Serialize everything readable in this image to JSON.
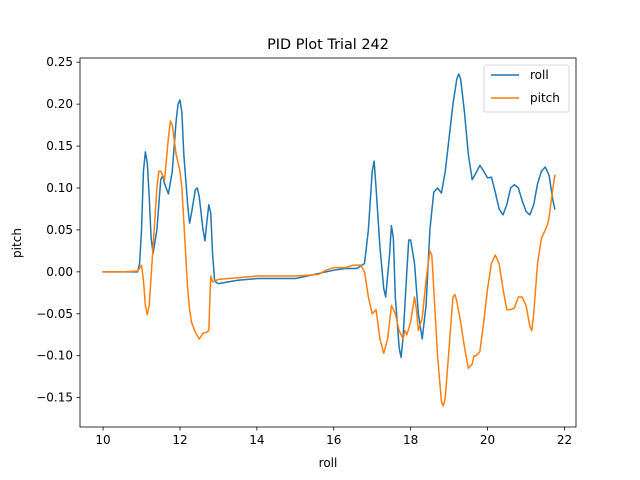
{
  "chart_data": {
    "type": "line",
    "title": "PID Plot Trial 242",
    "xlabel": "roll",
    "ylabel": "pitch",
    "xlim": [
      9.4,
      22.3
    ],
    "ylim": [
      -0.185,
      0.255
    ],
    "xticks": [
      10,
      12,
      14,
      16,
      18,
      20,
      22
    ],
    "xtick_labels": [
      "10",
      "12",
      "14",
      "16",
      "18",
      "20",
      "22"
    ],
    "yticks": [
      -0.15,
      -0.1,
      -0.05,
      0.0,
      0.05,
      0.1,
      0.15,
      0.2,
      0.25
    ],
    "ytick_labels": [
      "−0.15",
      "−0.10",
      "−0.05",
      "0.00",
      "0.05",
      "0.10",
      "0.15",
      "0.20",
      "0.25"
    ],
    "grid": false,
    "legend_position": "top-right",
    "series": [
      {
        "name": "roll",
        "color": "#1f77b4",
        "points": [
          [
            10.0,
            0.0
          ],
          [
            10.5,
            0.0
          ],
          [
            10.9,
            0.0
          ],
          [
            10.95,
            0.01
          ],
          [
            11.0,
            0.05
          ],
          [
            11.05,
            0.12
          ],
          [
            11.1,
            0.143
          ],
          [
            11.15,
            0.13
          ],
          [
            11.2,
            0.09
          ],
          [
            11.25,
            0.04
          ],
          [
            11.3,
            0.022
          ],
          [
            11.4,
            0.05
          ],
          [
            11.5,
            0.11
          ],
          [
            11.55,
            0.115
          ],
          [
            11.6,
            0.105
          ],
          [
            11.7,
            0.093
          ],
          [
            11.8,
            0.12
          ],
          [
            11.9,
            0.18
          ],
          [
            11.95,
            0.2
          ],
          [
            12.0,
            0.205
          ],
          [
            12.05,
            0.19
          ],
          [
            12.1,
            0.14
          ],
          [
            12.2,
            0.08
          ],
          [
            12.25,
            0.058
          ],
          [
            12.3,
            0.07
          ],
          [
            12.4,
            0.098
          ],
          [
            12.45,
            0.1
          ],
          [
            12.5,
            0.09
          ],
          [
            12.6,
            0.05
          ],
          [
            12.65,
            0.037
          ],
          [
            12.7,
            0.06
          ],
          [
            12.75,
            0.08
          ],
          [
            12.8,
            0.07
          ],
          [
            12.85,
            0.02
          ],
          [
            12.9,
            -0.01
          ],
          [
            12.95,
            -0.013
          ],
          [
            13.0,
            -0.014
          ],
          [
            13.5,
            -0.01
          ],
          [
            14.0,
            -0.008
          ],
          [
            14.5,
            -0.008
          ],
          [
            15.0,
            -0.008
          ],
          [
            15.2,
            -0.006
          ],
          [
            15.5,
            -0.003
          ],
          [
            16.0,
            0.002
          ],
          [
            16.3,
            0.004
          ],
          [
            16.6,
            0.004
          ],
          [
            16.8,
            0.01
          ],
          [
            16.9,
            0.05
          ],
          [
            17.0,
            0.12
          ],
          [
            17.05,
            0.132
          ],
          [
            17.1,
            0.1
          ],
          [
            17.2,
            0.03
          ],
          [
            17.3,
            -0.02
          ],
          [
            17.35,
            -0.03
          ],
          [
            17.45,
            0.02
          ],
          [
            17.5,
            0.055
          ],
          [
            17.55,
            0.04
          ],
          [
            17.6,
            -0.03
          ],
          [
            17.7,
            -0.09
          ],
          [
            17.75,
            -0.102
          ],
          [
            17.8,
            -0.08
          ],
          [
            17.9,
            0.0
          ],
          [
            17.95,
            0.038
          ],
          [
            18.0,
            0.038
          ],
          [
            18.1,
            0.01
          ],
          [
            18.2,
            -0.05
          ],
          [
            18.3,
            -0.08
          ],
          [
            18.4,
            -0.04
          ],
          [
            18.5,
            0.05
          ],
          [
            18.6,
            0.095
          ],
          [
            18.7,
            0.1
          ],
          [
            18.8,
            0.094
          ],
          [
            18.9,
            0.12
          ],
          [
            19.0,
            0.16
          ],
          [
            19.1,
            0.2
          ],
          [
            19.2,
            0.23
          ],
          [
            19.25,
            0.236
          ],
          [
            19.3,
            0.23
          ],
          [
            19.4,
            0.19
          ],
          [
            19.5,
            0.14
          ],
          [
            19.6,
            0.11
          ],
          [
            19.7,
            0.118
          ],
          [
            19.8,
            0.127
          ],
          [
            19.9,
            0.12
          ],
          [
            20.0,
            0.112
          ],
          [
            20.1,
            0.113
          ],
          [
            20.2,
            0.095
          ],
          [
            20.3,
            0.075
          ],
          [
            20.4,
            0.068
          ],
          [
            20.5,
            0.08
          ],
          [
            20.6,
            0.1
          ],
          [
            20.7,
            0.104
          ],
          [
            20.8,
            0.1
          ],
          [
            20.9,
            0.085
          ],
          [
            21.0,
            0.072
          ],
          [
            21.1,
            0.068
          ],
          [
            21.2,
            0.08
          ],
          [
            21.3,
            0.105
          ],
          [
            21.4,
            0.12
          ],
          [
            21.5,
            0.125
          ],
          [
            21.6,
            0.115
          ],
          [
            21.7,
            0.085
          ],
          [
            21.75,
            0.075
          ]
        ]
      },
      {
        "name": "pitch",
        "color": "#ff7f0e",
        "points": [
          [
            10.0,
            0.0
          ],
          [
            10.5,
            0.0
          ],
          [
            10.9,
            0.001
          ],
          [
            11.0,
            0.008
          ],
          [
            11.05,
            -0.01
          ],
          [
            11.1,
            -0.04
          ],
          [
            11.15,
            -0.051
          ],
          [
            11.2,
            -0.04
          ],
          [
            11.3,
            0.03
          ],
          [
            11.4,
            0.1
          ],
          [
            11.45,
            0.12
          ],
          [
            11.5,
            0.12
          ],
          [
            11.6,
            0.11
          ],
          [
            11.7,
            0.16
          ],
          [
            11.75,
            0.18
          ],
          [
            11.8,
            0.175
          ],
          [
            11.9,
            0.14
          ],
          [
            12.0,
            0.12
          ],
          [
            12.05,
            0.1
          ],
          [
            12.1,
            0.06
          ],
          [
            12.15,
            0.02
          ],
          [
            12.2,
            -0.02
          ],
          [
            12.25,
            -0.045
          ],
          [
            12.3,
            -0.06
          ],
          [
            12.4,
            -0.072
          ],
          [
            12.5,
            -0.08
          ],
          [
            12.55,
            -0.077
          ],
          [
            12.6,
            -0.073
          ],
          [
            12.7,
            -0.072
          ],
          [
            12.75,
            -0.07
          ],
          [
            12.8,
            -0.005
          ],
          [
            12.85,
            -0.012
          ],
          [
            13.0,
            -0.009
          ],
          [
            13.5,
            -0.007
          ],
          [
            14.0,
            -0.005
          ],
          [
            14.5,
            -0.005
          ],
          [
            15.0,
            -0.005
          ],
          [
            15.3,
            -0.004
          ],
          [
            15.6,
            -0.003
          ],
          [
            15.8,
            0.002
          ],
          [
            16.0,
            0.005
          ],
          [
            16.3,
            0.005
          ],
          [
            16.5,
            0.008
          ],
          [
            16.7,
            0.008
          ],
          [
            16.8,
            0.0
          ],
          [
            16.9,
            -0.03
          ],
          [
            17.0,
            -0.05
          ],
          [
            17.1,
            -0.045
          ],
          [
            17.2,
            -0.08
          ],
          [
            17.3,
            -0.097
          ],
          [
            17.4,
            -0.08
          ],
          [
            17.5,
            -0.04
          ],
          [
            17.6,
            -0.05
          ],
          [
            17.7,
            -0.07
          ],
          [
            17.8,
            -0.08
          ],
          [
            17.85,
            -0.07
          ],
          [
            17.9,
            -0.075
          ],
          [
            18.0,
            -0.06
          ],
          [
            18.1,
            -0.03
          ],
          [
            18.15,
            -0.045
          ],
          [
            18.2,
            -0.07
          ],
          [
            18.3,
            -0.055
          ],
          [
            18.4,
            -0.01
          ],
          [
            18.5,
            0.025
          ],
          [
            18.55,
            0.02
          ],
          [
            18.6,
            -0.02
          ],
          [
            18.7,
            -0.1
          ],
          [
            18.8,
            -0.155
          ],
          [
            18.85,
            -0.16
          ],
          [
            18.9,
            -0.15
          ],
          [
            19.0,
            -0.09
          ],
          [
            19.1,
            -0.03
          ],
          [
            19.15,
            -0.027
          ],
          [
            19.2,
            -0.035
          ],
          [
            19.3,
            -0.06
          ],
          [
            19.4,
            -0.09
          ],
          [
            19.5,
            -0.115
          ],
          [
            19.6,
            -0.11
          ],
          [
            19.65,
            -0.1
          ],
          [
            19.7,
            -0.1
          ],
          [
            19.8,
            -0.095
          ],
          [
            19.9,
            -0.06
          ],
          [
            20.0,
            -0.02
          ],
          [
            20.1,
            0.01
          ],
          [
            20.2,
            0.02
          ],
          [
            20.3,
            0.01
          ],
          [
            20.4,
            -0.02
          ],
          [
            20.5,
            -0.045
          ],
          [
            20.6,
            -0.045
          ],
          [
            20.7,
            -0.043
          ],
          [
            20.8,
            -0.03
          ],
          [
            20.9,
            -0.03
          ],
          [
            21.0,
            -0.04
          ],
          [
            21.1,
            -0.065
          ],
          [
            21.15,
            -0.07
          ],
          [
            21.2,
            -0.05
          ],
          [
            21.3,
            0.01
          ],
          [
            21.4,
            0.04
          ],
          [
            21.5,
            0.05
          ],
          [
            21.55,
            0.055
          ],
          [
            21.6,
            0.065
          ],
          [
            21.7,
            0.1
          ],
          [
            21.75,
            0.115
          ]
        ]
      }
    ]
  }
}
